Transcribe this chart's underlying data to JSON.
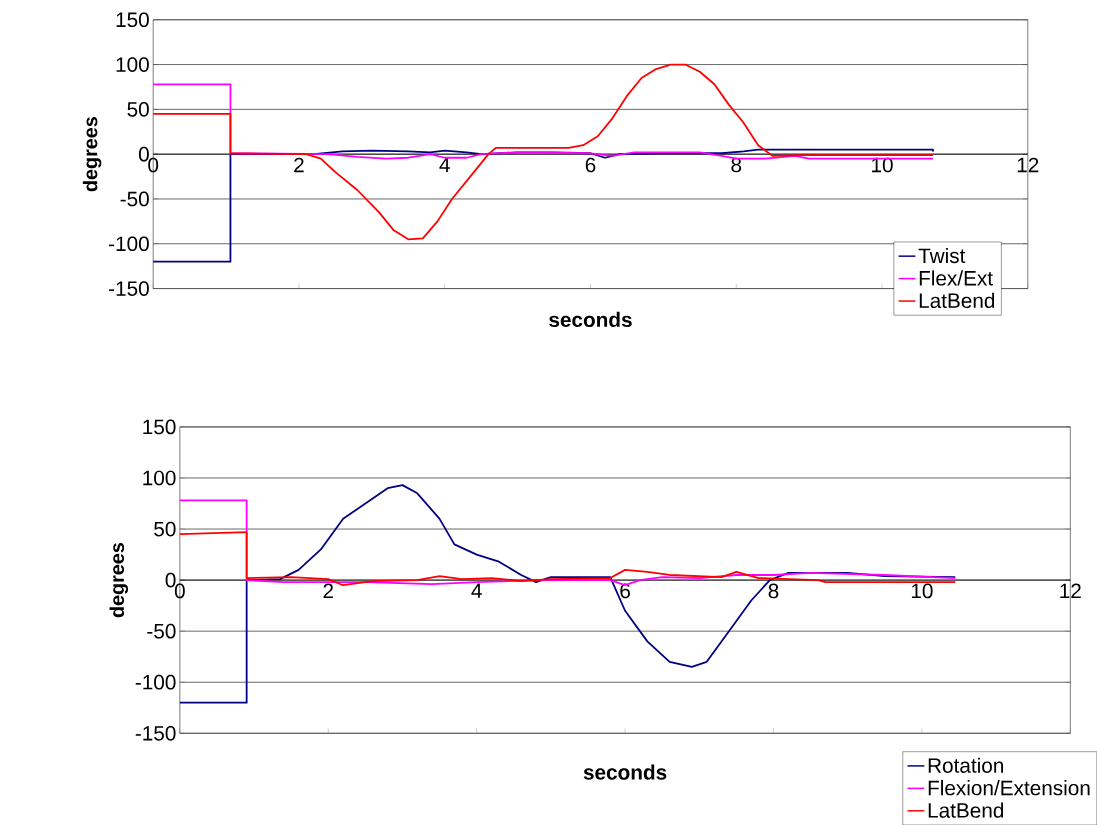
{
  "chart_data": [
    {
      "type": "line",
      "xlabel": "seconds",
      "ylabel": "degrees",
      "xlim": [
        0,
        12
      ],
      "xticks": [
        0,
        2,
        4,
        6,
        8,
        10,
        12
      ],
      "ylim": [
        -150,
        150
      ],
      "yticks": [
        -150,
        -100,
        -50,
        0,
        50,
        100,
        150
      ],
      "grid": "y",
      "legend": "bottom right",
      "series": [
        {
          "name": "Twist",
          "color": "#000080",
          "x": [
            0,
            1.06,
            1.06,
            2.2,
            2.6,
            3,
            3.5,
            3.8,
            4,
            4.3,
            4.5,
            5,
            5.5,
            6,
            6.2,
            6.4,
            7,
            7.8,
            8.1,
            8.3,
            10.7,
            10.7
          ],
          "values": [
            -120,
            -120,
            0,
            0,
            3,
            4,
            3,
            2,
            4,
            2,
            0,
            2,
            2,
            1,
            -4,
            0,
            1,
            1,
            3,
            5,
            5,
            3
          ]
        },
        {
          "name": "Flex/Ext",
          "color": "#ff00ff",
          "x": [
            0,
            1.06,
            1.06,
            2.4,
            2.8,
            3.2,
            3.5,
            3.8,
            4,
            4.3,
            4.5,
            5,
            6,
            6.3,
            6.6,
            7.5,
            7.8,
            8,
            8.4,
            8.8,
            9,
            10.7
          ],
          "values": [
            78,
            78,
            1,
            0,
            -3,
            -5,
            -4,
            0,
            -4,
            -4,
            0,
            2,
            1,
            -2,
            2,
            2,
            -2,
            -5,
            -5,
            -2,
            -5,
            -5
          ]
        },
        {
          "name": "LatBend",
          "color": "#ff0000",
          "x": [
            0,
            1.06,
            1.06,
            2.1,
            2.3,
            2.5,
            2.8,
            3.1,
            3.3,
            3.5,
            3.7,
            3.9,
            4.1,
            4.4,
            4.6,
            4.7,
            5.2,
            5.7,
            5.9,
            6.1,
            6.3,
            6.5,
            6.7,
            6.9,
            7.1,
            7.3,
            7.5,
            7.7,
            7.9,
            8.1,
            8.3,
            8.5,
            8.9,
            9,
            10.7
          ],
          "values": [
            45,
            45,
            1,
            0,
            -5,
            -20,
            -40,
            -65,
            -85,
            -95,
            -94,
            -75,
            -50,
            -20,
            0,
            7,
            7,
            7,
            10,
            20,
            40,
            65,
            85,
            95,
            100,
            100,
            92,
            78,
            55,
            35,
            10,
            -2,
            -1,
            -1,
            -1
          ]
        }
      ]
    },
    {
      "type": "line",
      "xlabel": "seconds",
      "ylabel": "degrees",
      "xlim": [
        0,
        12
      ],
      "xticks": [
        0,
        2,
        4,
        6,
        8,
        10,
        12
      ],
      "ylim": [
        -150,
        150
      ],
      "yticks": [
        -150,
        -100,
        -50,
        0,
        50,
        100,
        150
      ],
      "grid": "y",
      "legend": "bottom right",
      "series": [
        {
          "name": "Rotation",
          "color": "#000080",
          "x": [
            0,
            0.9,
            0.9,
            1.35,
            1.6,
            1.9,
            2.2,
            2.5,
            2.8,
            3.0,
            3.2,
            3.5,
            3.7,
            4,
            4.3,
            4.6,
            4.8,
            5,
            5.8,
            6.0,
            6.3,
            6.6,
            6.9,
            7.1,
            7.4,
            7.7,
            7.95,
            8.2,
            9,
            9.5,
            10.45
          ],
          "values": [
            -120,
            -120,
            0,
            1,
            10,
            30,
            60,
            75,
            90,
            93,
            85,
            60,
            35,
            25,
            18,
            5,
            -2,
            3,
            3,
            -30,
            -60,
            -80,
            -85,
            -80,
            -50,
            -20,
            0,
            7,
            7,
            4,
            3
          ]
        },
        {
          "name": "Flexion/Extension",
          "color": "#ff00ff",
          "x": [
            0,
            0.9,
            0.9,
            1.4,
            2.5,
            3.4,
            4,
            4.9,
            5.8,
            6,
            6.2,
            6.5,
            7,
            7.5,
            8,
            8.5,
            9.5,
            10.45
          ],
          "values": [
            78,
            78,
            0,
            -2,
            -2,
            -4,
            -2,
            0,
            0,
            -5,
            0,
            3,
            2,
            5,
            5,
            7,
            5,
            2
          ]
        },
        {
          "name": "LatBend",
          "color": "#ff0000",
          "x": [
            0,
            0.9,
            0.9,
            1.5,
            2,
            2.2,
            2.6,
            3.2,
            3.5,
            3.8,
            4.2,
            4.6,
            5,
            5.8,
            6,
            6.3,
            6.6,
            7.3,
            7.5,
            7.8,
            8.6,
            8.7,
            10.45
          ],
          "values": [
            45,
            47,
            2,
            3,
            1,
            -5,
            -1,
            0,
            4,
            1,
            2,
            -1,
            1,
            2,
            10,
            8,
            5,
            3,
            8,
            2,
            0,
            -2,
            -2
          ]
        }
      ]
    }
  ]
}
